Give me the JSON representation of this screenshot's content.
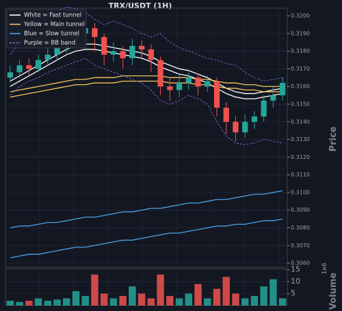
{
  "chart_data": [
    {
      "type": "candlestick",
      "title": "TRX/USDT (1H)",
      "y_label": "Price",
      "up_color": "#26a69a",
      "down_color": "#ef5350",
      "grid": true,
      "legend": "upper left",
      "ylim": [
        0.30577,
        0.32043
      ],
      "yticks": [
        {
          "value": 0.306,
          "label": "0.3060"
        },
        {
          "value": 0.307,
          "label": "0.3070"
        },
        {
          "value": 0.308,
          "label": "0.3080"
        },
        {
          "value": 0.309,
          "label": "0.3090"
        },
        {
          "value": 0.31,
          "label": "0.3100"
        },
        {
          "value": 0.311,
          "label": "0.3110"
        },
        {
          "value": 0.312,
          "label": "0.3120"
        },
        {
          "value": 0.313,
          "label": "0.3130"
        },
        {
          "value": 0.314,
          "label": "0.3140"
        },
        {
          "value": 0.315,
          "label": "0.3150"
        },
        {
          "value": 0.316,
          "label": "0.3160"
        },
        {
          "value": 0.317,
          "label": "0.3170"
        },
        {
          "value": 0.318,
          "label": "0.3180"
        },
        {
          "value": 0.319,
          "label": "0.3190"
        },
        {
          "value": 0.32,
          "label": "0.3200"
        }
      ],
      "open": [
        0.3165,
        0.3168,
        0.3172,
        0.317,
        0.3175,
        0.3178,
        0.3182,
        0.3185,
        0.319,
        0.3193,
        0.3188,
        0.3178,
        0.318,
        0.3176,
        0.3183,
        0.3181,
        0.3175,
        0.316,
        0.3158,
        0.3162,
        0.3165,
        0.316,
        0.3163,
        0.3148,
        0.314,
        0.3134,
        0.314,
        0.3143,
        0.3152,
        0.3155
      ],
      "high": [
        0.3172,
        0.3175,
        0.3176,
        0.3178,
        0.3182,
        0.3185,
        0.319,
        0.3195,
        0.3197,
        0.3196,
        0.319,
        0.3185,
        0.3183,
        0.3187,
        0.3186,
        0.3184,
        0.3177,
        0.3165,
        0.3167,
        0.3168,
        0.3167,
        0.3166,
        0.3165,
        0.3151,
        0.3143,
        0.3144,
        0.3146,
        0.3155,
        0.316,
        0.3165
      ],
      "low": [
        0.3162,
        0.3165,
        0.3166,
        0.3168,
        0.3172,
        0.3175,
        0.3179,
        0.3183,
        0.3186,
        0.318,
        0.3172,
        0.3174,
        0.317,
        0.3172,
        0.3176,
        0.3168,
        0.3155,
        0.3152,
        0.3154,
        0.3158,
        0.3155,
        0.3157,
        0.3143,
        0.3133,
        0.3129,
        0.3131,
        0.3136,
        0.314,
        0.3148,
        0.3152
      ],
      "close": [
        0.3168,
        0.3172,
        0.317,
        0.3175,
        0.3178,
        0.3182,
        0.3185,
        0.319,
        0.3193,
        0.3188,
        0.3178,
        0.318,
        0.3176,
        0.3183,
        0.3181,
        0.3175,
        0.316,
        0.3158,
        0.3162,
        0.3165,
        0.316,
        0.3163,
        0.3148,
        0.314,
        0.3134,
        0.314,
        0.3143,
        0.3152,
        0.3155,
        0.3162
      ],
      "series": [
        {
          "name": "White = Fast tunnel",
          "color": "#ffffff",
          "dashed": false,
          "upper": [
            0.3163,
            0.3166,
            0.3169,
            0.3172,
            0.3175,
            0.3178,
            0.3181,
            0.3183,
            0.3184,
            0.3184,
            0.3183,
            0.3182,
            0.3181,
            0.318,
            0.3179,
            0.3177,
            0.3174,
            0.3172,
            0.317,
            0.3169,
            0.3167,
            0.3165,
            0.3162,
            0.3159,
            0.3157,
            0.3156,
            0.3156,
            0.3157,
            0.3158,
            0.3159
          ],
          "lower": [
            0.316,
            0.3163,
            0.3166,
            0.3169,
            0.3172,
            0.3175,
            0.3178,
            0.318,
            0.3181,
            0.3181,
            0.318,
            0.3179,
            0.3178,
            0.3177,
            0.3176,
            0.3174,
            0.3171,
            0.3169,
            0.3167,
            0.3166,
            0.3164,
            0.3162,
            0.3159,
            0.3156,
            0.3154,
            0.3153,
            0.3153,
            0.3154,
            0.3155,
            0.3156
          ]
        },
        {
          "name": "Yellow = Main tunnel",
          "color": "#f6c65b",
          "dashed": false,
          "upper": [
            0.3157,
            0.3158,
            0.3159,
            0.316,
            0.3161,
            0.3162,
            0.3163,
            0.3164,
            0.3164,
            0.3165,
            0.3165,
            0.3165,
            0.3166,
            0.3166,
            0.3166,
            0.3166,
            0.3166,
            0.3165,
            0.3165,
            0.3165,
            0.3164,
            0.3164,
            0.3163,
            0.3162,
            0.3162,
            0.3161,
            0.3161,
            0.316,
            0.316,
            0.316
          ],
          "lower": [
            0.3154,
            0.3155,
            0.3156,
            0.3157,
            0.3158,
            0.3159,
            0.316,
            0.3161,
            0.3161,
            0.3162,
            0.3162,
            0.3162,
            0.3163,
            0.3163,
            0.3163,
            0.3163,
            0.3163,
            0.3162,
            0.3162,
            0.3162,
            0.3161,
            0.3161,
            0.316,
            0.3159,
            0.3159,
            0.3158,
            0.3158,
            0.3157,
            0.3157,
            0.3157
          ]
        },
        {
          "name": "Blue = Slow tunnel",
          "color": "#4aa3e8",
          "dashed": false,
          "upper": [
            0.308,
            0.3081,
            0.3081,
            0.3082,
            0.3083,
            0.3083,
            0.3084,
            0.3085,
            0.3086,
            0.3086,
            0.3087,
            0.3088,
            0.3089,
            0.3089,
            0.309,
            0.3091,
            0.3091,
            0.3092,
            0.3093,
            0.3094,
            0.3094,
            0.3095,
            0.3096,
            0.3096,
            0.3097,
            0.3098,
            0.3099,
            0.3099,
            0.31,
            0.3101
          ],
          "lower": [
            0.3063,
            0.3064,
            0.3065,
            0.3065,
            0.3066,
            0.3067,
            0.3068,
            0.3069,
            0.3069,
            0.307,
            0.3071,
            0.3072,
            0.3073,
            0.3073,
            0.3074,
            0.3075,
            0.3076,
            0.3077,
            0.3077,
            0.3078,
            0.3079,
            0.308,
            0.3081,
            0.3081,
            0.3082,
            0.3082,
            0.3083,
            0.3084,
            0.3084,
            0.3085
          ]
        },
        {
          "name": "Purple = BB band",
          "color": "#8a6cf0",
          "dashed": true,
          "upper": [
            0.3178,
            0.3185,
            0.3192,
            0.3197,
            0.32,
            0.3203,
            0.3205,
            0.3204,
            0.3202,
            0.3198,
            0.3195,
            0.3197,
            0.3195,
            0.3193,
            0.319,
            0.3188,
            0.319,
            0.3185,
            0.3182,
            0.318,
            0.3178,
            0.3176,
            0.3175,
            0.3173,
            0.3172,
            0.3168,
            0.3165,
            0.3163,
            0.3164,
            0.3165
          ],
          "lower": [
            0.3155,
            0.316,
            0.3163,
            0.3165,
            0.3168,
            0.317,
            0.3172,
            0.3174,
            0.3176,
            0.3172,
            0.317,
            0.3168,
            0.3166,
            0.3164,
            0.3162,
            0.3158,
            0.3152,
            0.315,
            0.3152,
            0.3155,
            0.3153,
            0.315,
            0.314,
            0.3132,
            0.3128,
            0.3127,
            0.3128,
            0.313,
            0.3129,
            0.3128
          ]
        }
      ]
    },
    {
      "type": "bar",
      "y_label": "Volume",
      "offset_label": "1e6",
      "ylim": [
        0,
        15.5
      ],
      "yticks": [
        5,
        10,
        15
      ],
      "grid": true,
      "values": [
        2,
        1.5,
        2,
        3,
        2,
        2.5,
        3,
        6,
        4,
        13,
        5,
        3,
        4,
        8,
        5,
        3,
        13,
        4,
        3,
        5,
        9,
        3,
        7,
        12,
        5,
        3,
        4,
        8,
        11,
        3
      ]
    }
  ]
}
